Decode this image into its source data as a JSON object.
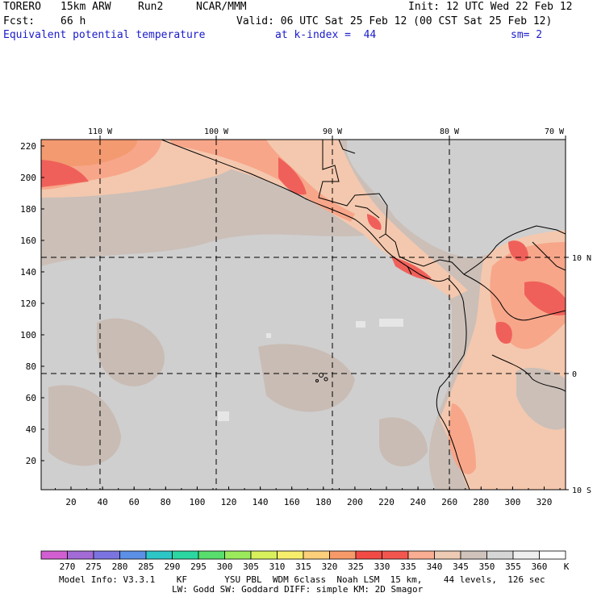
{
  "header": {
    "model": "TORERO",
    "resolution": "15km ARW",
    "run": "Run2",
    "org": "NCAR/MMM",
    "init": "Init: 12 UTC Wed 22 Feb 12",
    "fcst_label": "Fcst:",
    "fcst_value": "66 h",
    "valid": "Valid: 06 UTC Sat 25 Feb 12 (00 CST Sat 25 Feb 12)",
    "field": "Equivalent potential temperature",
    "level": "at k-index =  44",
    "smoothing": "sm= 2"
  },
  "axes": {
    "x_ticks": [
      "20",
      "40",
      "60",
      "80",
      "100",
      "120",
      "140",
      "160",
      "180",
      "200",
      "220",
      "240",
      "260",
      "280",
      "300",
      "320"
    ],
    "y_ticks": [
      "20",
      "40",
      "60",
      "80",
      "100",
      "120",
      "140",
      "160",
      "180",
      "200",
      "220"
    ],
    "lon_labels": [
      "110 W",
      "100 W",
      "90 W",
      "80 W",
      "70 W"
    ],
    "lat_labels": [
      "10 N",
      "0",
      "10 S"
    ]
  },
  "colorbar": {
    "values": [
      "270",
      "275",
      "280",
      "285",
      "290",
      "295",
      "300",
      "305",
      "310",
      "315",
      "320",
      "325",
      "330",
      "335",
      "340",
      "345",
      "350",
      "355",
      "360"
    ],
    "unit": "K",
    "colors": [
      "#d15fd1",
      "#a36bd6",
      "#7b74e0",
      "#5c8fe6",
      "#2dc6c6",
      "#2bd6a0",
      "#58de6c",
      "#9bea5c",
      "#d8f05c",
      "#f7ee6c",
      "#fcd07a",
      "#f79a6a",
      "#f24b46",
      "#f2564f",
      "#f9ad92",
      "#eccab3",
      "#cfc3bc",
      "#d6d6d6",
      "#eeeeee",
      "#ffffff"
    ]
  },
  "footer": {
    "line1": "Model Info: V3.3.1    KF       YSU PBL  WDM 6class  Noah LSM  15 km,    44 levels,  126 sec",
    "line2": "LW: Godd SW: Goddard DIFF: simple KM: 2D Smagor"
  },
  "field_colors": {
    "bg_tan": "#cbbfb8",
    "gray": "#cfcfcf",
    "peach": "#f4c8ae",
    "salmon": "#f7a68a",
    "red": "#f0605a",
    "orange": "#f39a70",
    "light": "#e6e6e6"
  }
}
